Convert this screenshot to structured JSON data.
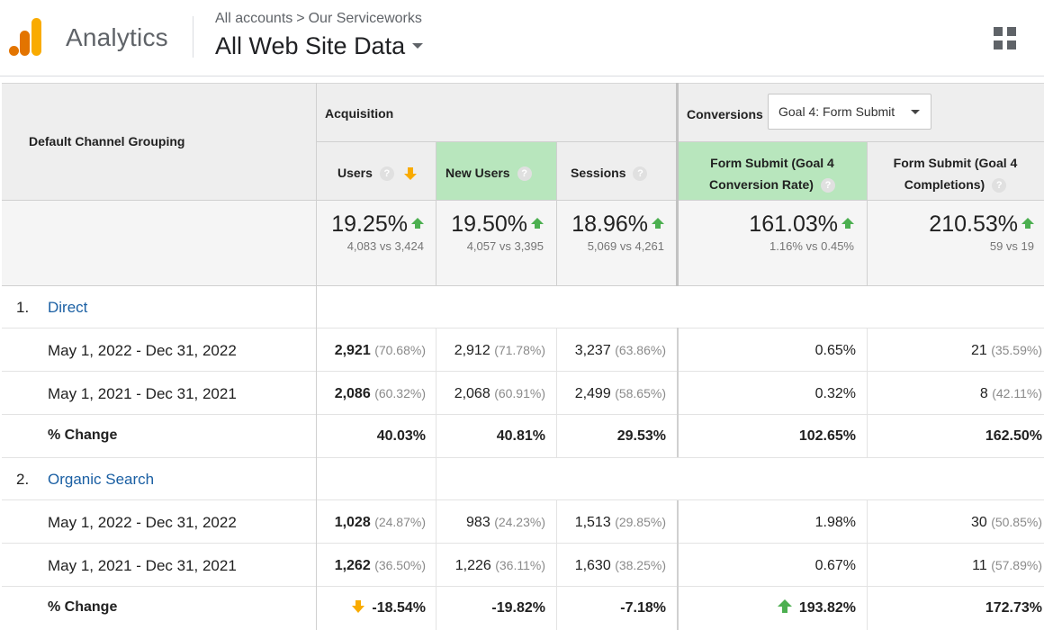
{
  "header": {
    "app_name": "Analytics",
    "breadcrumb": [
      "All accounts",
      "Our Serviceworks"
    ],
    "breadcrumb_sep": ">",
    "view_name": "All Web Site Data"
  },
  "colors": {
    "accent_orange": "#f9ab00",
    "logo_dark": "#e37400",
    "up_green": "#4caf50",
    "link_blue": "#1a5fa3",
    "highlight": "#b8e6bd"
  },
  "table": {
    "dimension_header": "Default Channel Grouping",
    "group_acquisition": "Acquisition",
    "group_conversions": "Conversions",
    "goal_select": "Goal 4: Form Submit",
    "help_glyph": "?",
    "columns": {
      "users": "Users",
      "new_users": "New Users",
      "sessions": "Sessions",
      "rate_line1": "Form Submit (Goal 4",
      "rate_line2": "Conversion Rate)",
      "comp_line1": "Form Submit (Goal 4",
      "comp_line2": "Completions)"
    },
    "totals": {
      "users": {
        "change": "19.25%",
        "compare": "4,083 vs 3,424"
      },
      "new_users": {
        "change": "19.50%",
        "compare": "4,057 vs 3,395"
      },
      "sessions": {
        "change": "18.96%",
        "compare": "5,069 vs 4,261"
      },
      "rate": {
        "change": "161.03%",
        "compare": "1.16% vs 0.45%"
      },
      "completions": {
        "change": "210.53%",
        "compare": "59 vs 19"
      }
    },
    "groups": [
      {
        "index": "1.",
        "name": "Direct",
        "rows": [
          {
            "label": "May 1, 2022 - Dec 31, 2022",
            "users": "2,921",
            "users_pct": "(70.68%)",
            "new_users": "2,912",
            "new_users_pct": "(71.78%)",
            "sessions": "3,237",
            "sessions_pct": "(63.86%)",
            "rate": "0.65%",
            "completions": "21",
            "completions_pct": "(35.59%)"
          },
          {
            "label": "May 1, 2021 - Dec 31, 2021",
            "users": "2,086",
            "users_pct": "(60.32%)",
            "new_users": "2,068",
            "new_users_pct": "(60.91%)",
            "sessions": "2,499",
            "sessions_pct": "(58.65%)",
            "rate": "0.32%",
            "completions": "8",
            "completions_pct": "(42.11%)"
          }
        ],
        "change": {
          "label": "% Change",
          "users": "40.03%",
          "new_users": "40.81%",
          "sessions": "29.53%",
          "rate": "102.65%",
          "completions": "162.50%"
        }
      },
      {
        "index": "2.",
        "name": "Organic Search",
        "rows": [
          {
            "label": "May 1, 2022 - Dec 31, 2022",
            "users": "1,028",
            "users_pct": "(24.87%)",
            "new_users": "983",
            "new_users_pct": "(24.23%)",
            "sessions": "1,513",
            "sessions_pct": "(29.85%)",
            "rate": "1.98%",
            "completions": "30",
            "completions_pct": "(50.85%)"
          },
          {
            "label": "May 1, 2021 - Dec 31, 2021",
            "users": "1,262",
            "users_pct": "(36.50%)",
            "new_users": "1,226",
            "new_users_pct": "(36.11%)",
            "sessions": "1,630",
            "sessions_pct": "(38.25%)",
            "rate": "0.67%",
            "completions": "11",
            "completions_pct": "(57.89%)"
          }
        ],
        "change": {
          "label": "% Change",
          "users": "-18.54%",
          "users_trend": "down",
          "new_users": "-19.82%",
          "sessions": "-7.18%",
          "rate": "193.82%",
          "rate_trend": "up",
          "completions": "172.73%"
        }
      }
    ]
  }
}
